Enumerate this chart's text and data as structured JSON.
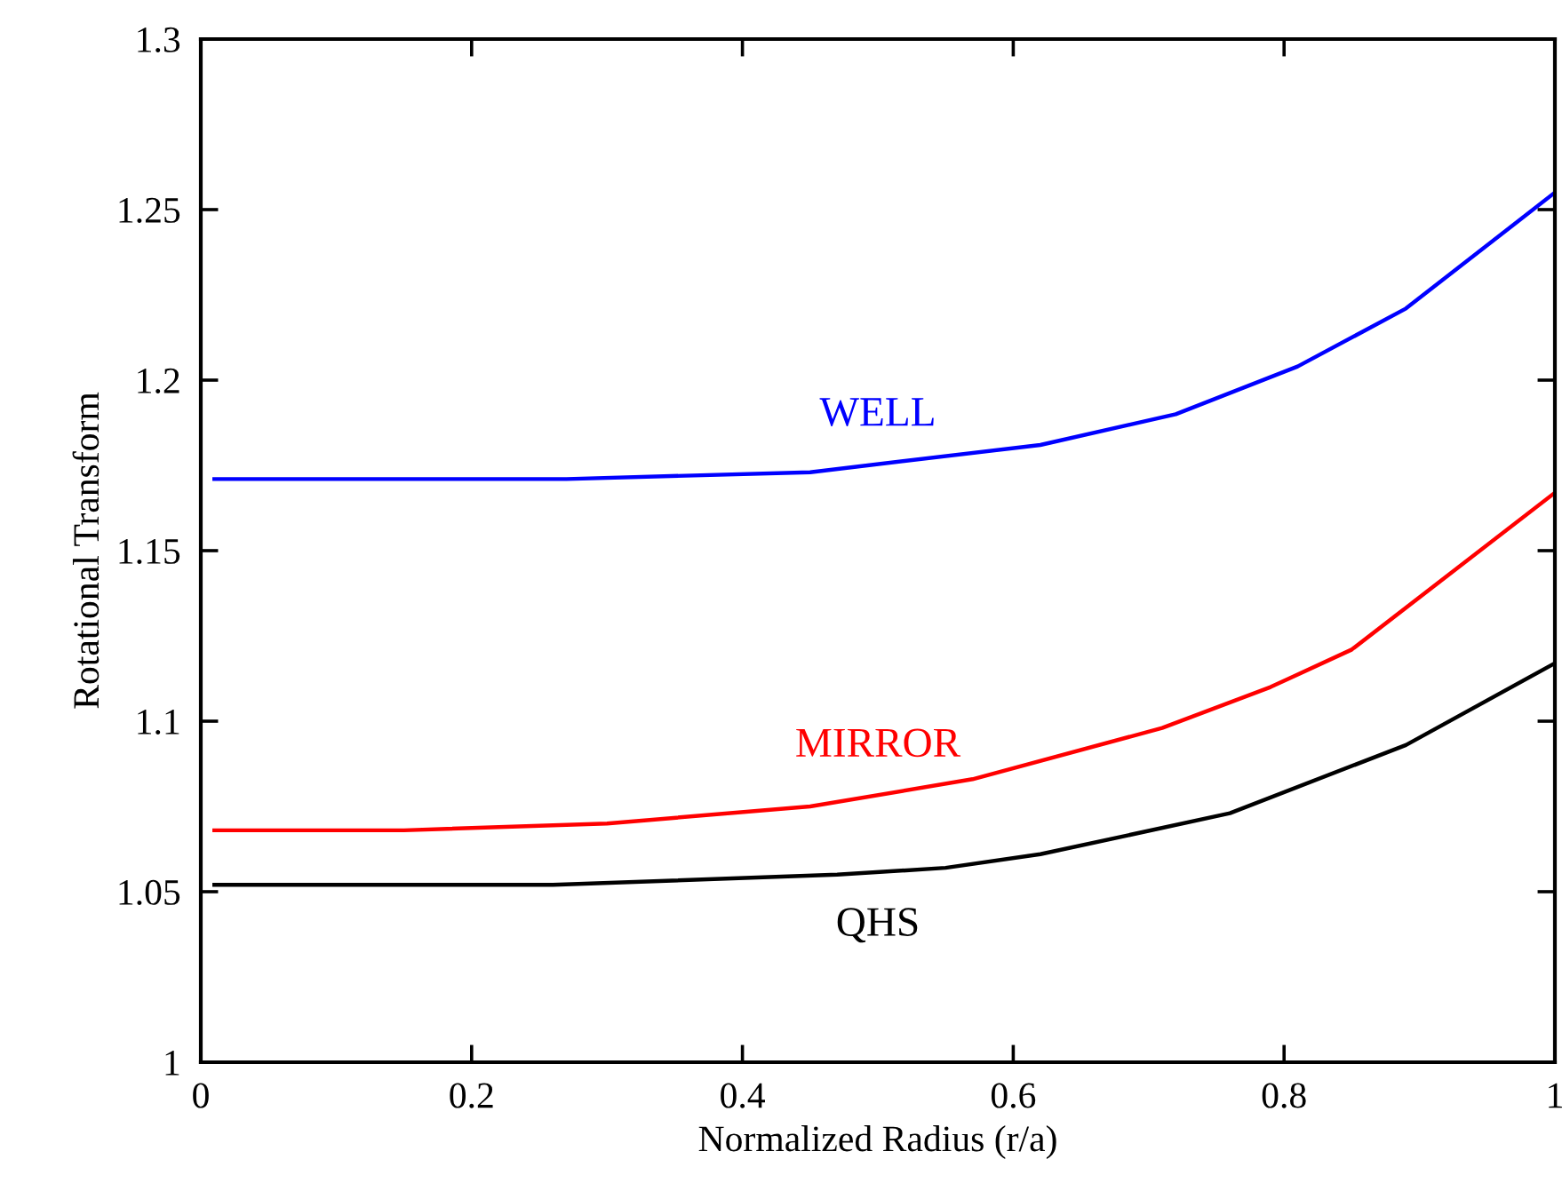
{
  "chart_data": {
    "type": "line",
    "xlabel": "Normalized Radius (r/a)",
    "ylabel": "Rotational Transform",
    "xlim": [
      0,
      1
    ],
    "ylim": [
      1,
      1.3
    ],
    "xticks": [
      0,
      0.2,
      0.4,
      0.6,
      0.8,
      1
    ],
    "yticks": [
      1,
      1.05,
      1.1,
      1.15,
      1.2,
      1.25,
      1.3
    ],
    "grid": false,
    "legend": false,
    "marker": "none",
    "line_style": "solid",
    "series": [
      {
        "name": "WELL",
        "color": "#0000ff",
        "x": [
          0.01,
          0.27,
          0.45,
          0.62,
          0.72,
          0.81,
          0.89,
          1.0
        ],
        "values": [
          1.171,
          1.171,
          1.173,
          1.181,
          1.19,
          1.204,
          1.221,
          1.255
        ]
      },
      {
        "name": "MIRROR",
        "color": "#ff0000",
        "x": [
          0.01,
          0.15,
          0.3,
          0.45,
          0.57,
          0.71,
          0.79,
          0.85,
          1.0
        ],
        "values": [
          1.068,
          1.068,
          1.07,
          1.075,
          1.083,
          1.098,
          1.11,
          1.121,
          1.167
        ]
      },
      {
        "name": "QHS",
        "color": "#000000",
        "x": [
          0.01,
          0.26,
          0.47,
          0.55,
          0.62,
          0.76,
          0.89,
          1.0
        ],
        "values": [
          1.052,
          1.052,
          1.055,
          1.057,
          1.061,
          1.073,
          1.093,
          1.117
        ]
      }
    ]
  }
}
